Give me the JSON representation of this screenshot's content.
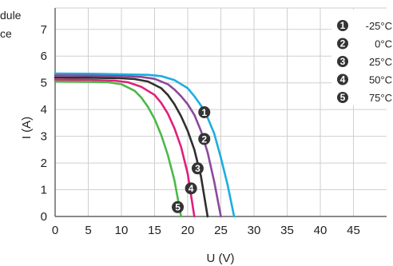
{
  "side_text": [
    "dule",
    "ce"
  ],
  "chart_data": {
    "type": "line",
    "title": "",
    "xlabel": "U (V)",
    "ylabel": "I (A)",
    "xlim": [
      0,
      50
    ],
    "ylim": [
      0,
      7.8
    ],
    "x_ticks": [
      0,
      5,
      10,
      15,
      20,
      25,
      30,
      35,
      40,
      45
    ],
    "y_ticks": [
      0,
      1,
      2,
      3,
      4,
      5,
      6,
      7
    ],
    "grid": true,
    "legend_position": "top-right",
    "series": [
      {
        "name": "-25°C",
        "marker": "1",
        "color": "#1aaee0",
        "x": [
          0,
          5,
          10,
          14,
          16,
          18,
          20,
          21,
          22,
          23,
          24,
          25,
          26,
          27
        ],
        "y": [
          5.35,
          5.34,
          5.32,
          5.3,
          5.25,
          5.1,
          4.8,
          4.5,
          4.15,
          3.7,
          3.1,
          2.2,
          1.2,
          0
        ]
      },
      {
        "name": "0°C",
        "marker": "2",
        "color": "#8a4a9c",
        "x": [
          0,
          5,
          10,
          13,
          15,
          17,
          18,
          19,
          20,
          21,
          22,
          23,
          24,
          25
        ],
        "y": [
          5.28,
          5.27,
          5.25,
          5.22,
          5.15,
          4.95,
          4.75,
          4.5,
          4.2,
          3.8,
          3.2,
          2.4,
          1.3,
          0
        ]
      },
      {
        "name": "25°C",
        "marker": "3",
        "color": "#2f2f2f",
        "x": [
          0,
          5,
          10,
          12,
          14,
          16,
          17,
          18,
          19,
          20,
          21,
          22,
          23
        ],
        "y": [
          5.2,
          5.19,
          5.17,
          5.14,
          5.05,
          4.8,
          4.55,
          4.2,
          3.75,
          3.2,
          2.5,
          1.5,
          0
        ]
      },
      {
        "name": "50°C",
        "marker": "4",
        "color": "#e01f7a",
        "x": [
          0,
          5,
          9,
          11,
          13,
          15,
          16,
          17,
          18,
          19,
          20,
          21
        ],
        "y": [
          5.12,
          5.11,
          5.08,
          5.02,
          4.85,
          4.55,
          4.25,
          3.85,
          3.3,
          2.6,
          1.6,
          0
        ]
      },
      {
        "name": "75°C",
        "marker": "5",
        "color": "#4db848",
        "x": [
          0,
          5,
          8,
          10,
          12,
          13,
          14,
          15,
          16,
          17,
          18,
          19
        ],
        "y": [
          5.05,
          5.04,
          5.02,
          4.95,
          4.7,
          4.45,
          4.1,
          3.65,
          3.05,
          2.3,
          1.35,
          0
        ]
      }
    ],
    "annotations": [
      {
        "marker": "1",
        "x": 22.5,
        "y": 3.9
      },
      {
        "marker": "2",
        "x": 22.5,
        "y": 2.9
      },
      {
        "marker": "3",
        "x": 21.5,
        "y": 1.8
      },
      {
        "marker": "4",
        "x": 20.5,
        "y": 1.05
      },
      {
        "marker": "5",
        "x": 18.5,
        "y": 0.35
      }
    ]
  }
}
